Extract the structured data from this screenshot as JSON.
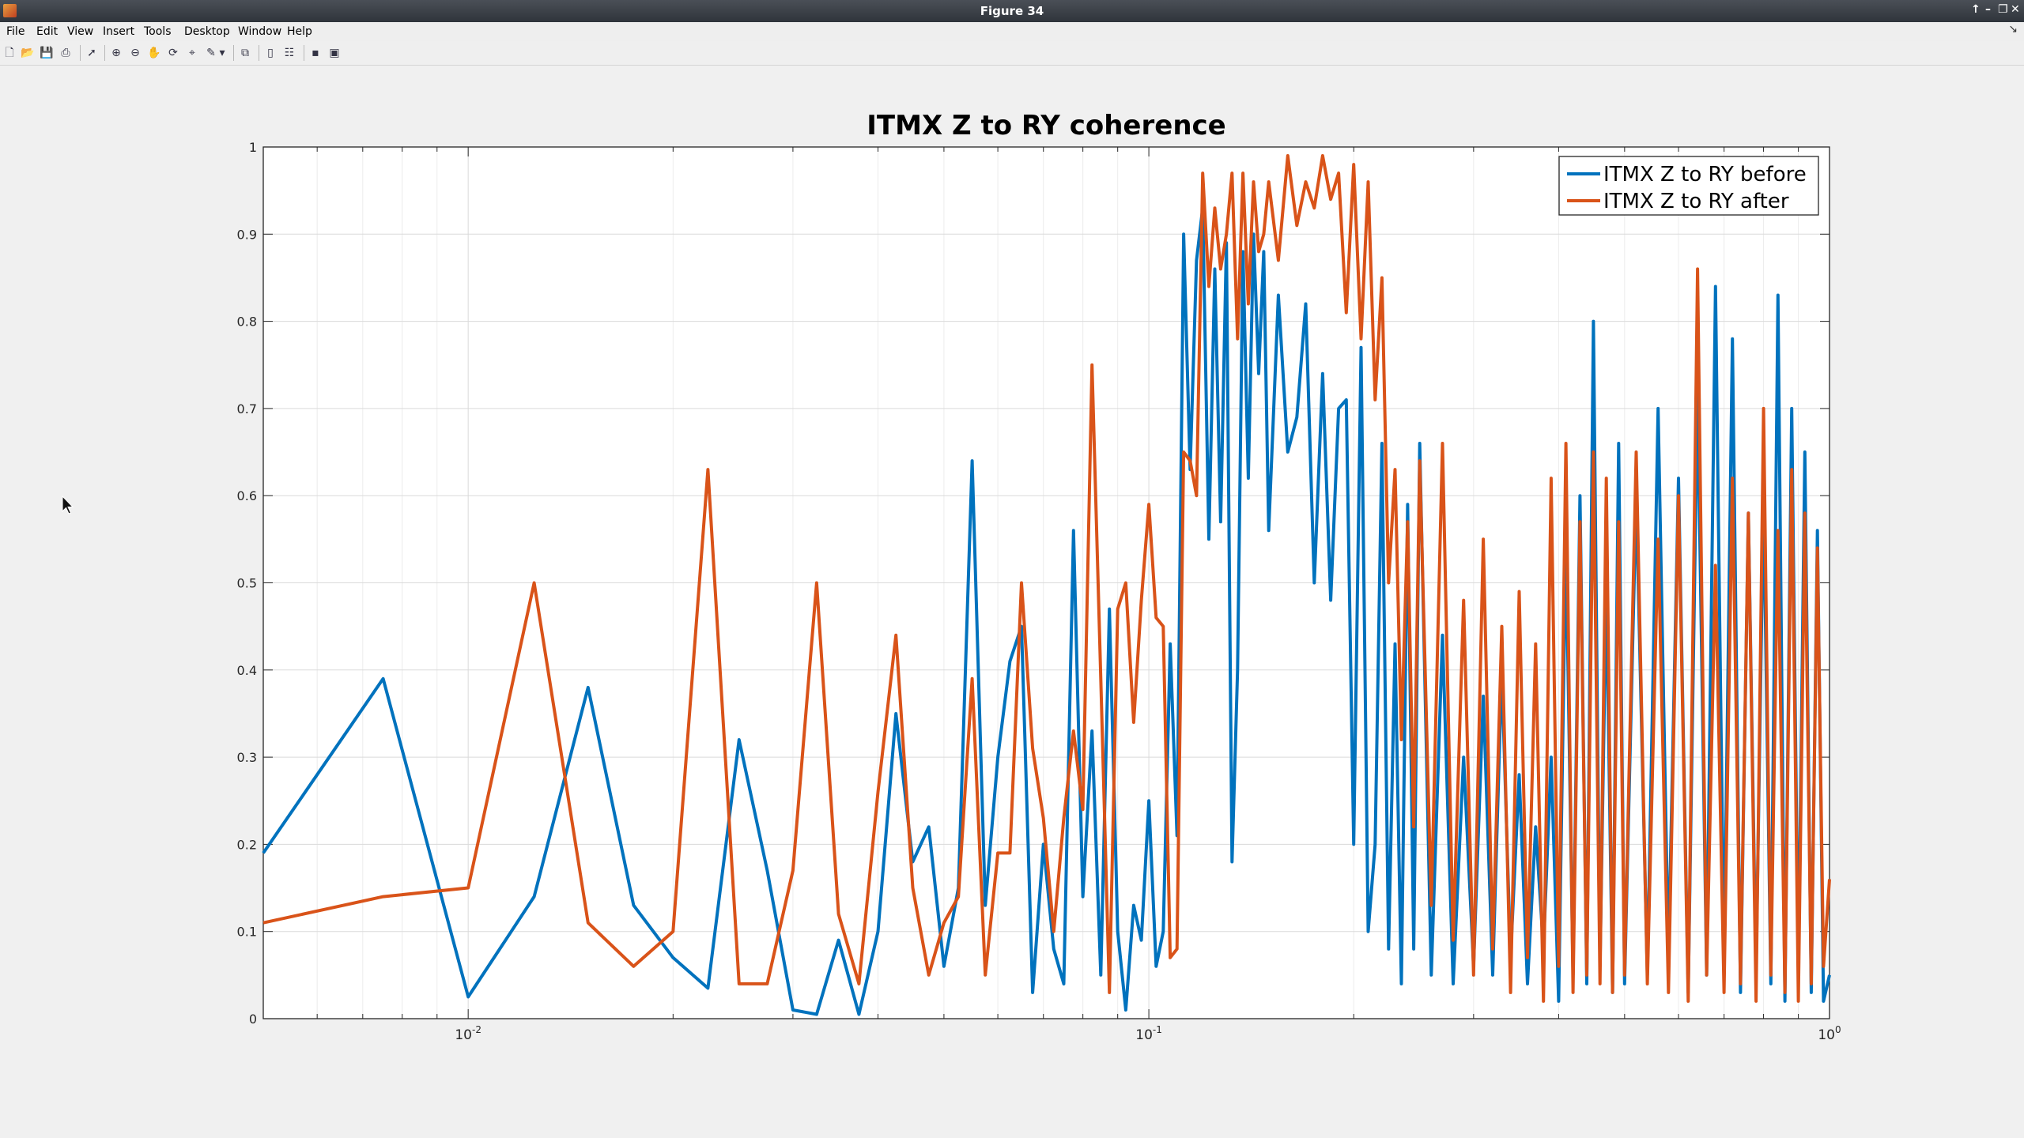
{
  "window": {
    "title": "Figure 34"
  },
  "menu": [
    "File",
    "Edit",
    "View",
    "Insert",
    "Tools",
    "Desktop",
    "Window",
    "Help"
  ],
  "toolbar_icons": [
    "new-figure-icon",
    "open-file-icon",
    "save-icon",
    "print-icon",
    "pointer-icon",
    "zoom-in-icon",
    "zoom-out-icon",
    "pan-icon",
    "rotate-3d-icon",
    "data-cursor-icon",
    "brush-icon",
    "brush-menu-icon",
    "link-plot-icon",
    "colorbar-icon",
    "legend-icon",
    "hide-plot-tools-icon",
    "show-plot-tools-icon"
  ],
  "colors": {
    "before": "#0072bd",
    "after": "#d95319"
  },
  "chart_data": {
    "type": "line",
    "title": "ITMX Z to RY coherence",
    "xlabel": "",
    "ylabel": "",
    "xscale": "log",
    "xlim": [
      0.005,
      1.0
    ],
    "ylim": [
      0,
      1
    ],
    "x_tick_labels": [
      "10^-2",
      "10^-1",
      "10^0"
    ],
    "y_tick_labels": [
      "0",
      "0.1",
      "0.2",
      "0.3",
      "0.4",
      "0.5",
      "0.6",
      "0.7",
      "0.8",
      "0.9",
      "1"
    ],
    "grid": true,
    "legend_position": "top-right",
    "series": [
      {
        "name": "ITMX Z to RY before",
        "x": [
          0.005,
          0.0075,
          0.01,
          0.0125,
          0.015,
          0.0175,
          0.02,
          0.0225,
          0.025,
          0.0275,
          0.03,
          0.0325,
          0.035,
          0.0375,
          0.04,
          0.0425,
          0.045,
          0.0475,
          0.05,
          0.0525,
          0.055,
          0.0575,
          0.06,
          0.0625,
          0.065,
          0.0675,
          0.07,
          0.0725,
          0.075,
          0.0775,
          0.08,
          0.0825,
          0.085,
          0.0875,
          0.09,
          0.0925,
          0.095,
          0.0975,
          0.1,
          0.1025,
          0.105,
          0.1075,
          0.11,
          0.1125,
          0.115,
          0.1175,
          0.12,
          0.1225,
          0.125,
          0.1275,
          0.13,
          0.1325,
          0.135,
          0.1375,
          0.14,
          0.1425,
          0.145,
          0.1475,
          0.15,
          0.155,
          0.16,
          0.165,
          0.17,
          0.175,
          0.18,
          0.185,
          0.19,
          0.195,
          0.2,
          0.205,
          0.21,
          0.215,
          0.22,
          0.225,
          0.23,
          0.235,
          0.24,
          0.245,
          0.25,
          0.26,
          0.27,
          0.28,
          0.29,
          0.3,
          0.31,
          0.32,
          0.33,
          0.34,
          0.35,
          0.36,
          0.37,
          0.38,
          0.39,
          0.4,
          0.41,
          0.42,
          0.43,
          0.44,
          0.45,
          0.46,
          0.47,
          0.48,
          0.49,
          0.5,
          0.52,
          0.54,
          0.56,
          0.58,
          0.6,
          0.62,
          0.64,
          0.66,
          0.68,
          0.7,
          0.72,
          0.74,
          0.76,
          0.78,
          0.8,
          0.82,
          0.84,
          0.86,
          0.88,
          0.9,
          0.92,
          0.94,
          0.96,
          0.98,
          1.0
        ],
        "y": [
          0.19,
          0.39,
          0.025,
          0.14,
          0.38,
          0.13,
          0.07,
          0.035,
          0.32,
          0.17,
          0.01,
          0.005,
          0.09,
          0.005,
          0.1,
          0.35,
          0.18,
          0.22,
          0.06,
          0.15,
          0.64,
          0.13,
          0.3,
          0.41,
          0.45,
          0.03,
          0.2,
          0.08,
          0.04,
          0.56,
          0.14,
          0.33,
          0.05,
          0.47,
          0.1,
          0.01,
          0.13,
          0.09,
          0.25,
          0.06,
          0.1,
          0.43,
          0.21,
          0.9,
          0.63,
          0.87,
          0.93,
          0.55,
          0.86,
          0.57,
          0.89,
          0.18,
          0.4,
          0.88,
          0.62,
          0.9,
          0.74,
          0.88,
          0.56,
          0.83,
          0.65,
          0.69,
          0.82,
          0.5,
          0.74,
          0.48,
          0.7,
          0.71,
          0.2,
          0.77,
          0.1,
          0.2,
          0.66,
          0.08,
          0.43,
          0.04,
          0.59,
          0.08,
          0.66,
          0.05,
          0.44,
          0.04,
          0.3,
          0.06,
          0.37,
          0.05,
          0.4,
          0.07,
          0.28,
          0.04,
          0.22,
          0.08,
          0.3,
          0.02,
          0.55,
          0.05,
          0.6,
          0.04,
          0.8,
          0.06,
          0.5,
          0.03,
          0.66,
          0.04,
          0.6,
          0.05,
          0.7,
          0.07,
          0.62,
          0.03,
          0.72,
          0.05,
          0.84,
          0.06,
          0.78,
          0.03,
          0.58,
          0.05,
          0.6,
          0.04,
          0.83,
          0.02,
          0.7,
          0.05,
          0.65,
          0.03,
          0.56,
          0.02,
          0.05
        ]
      },
      {
        "name": "ITMX Z to RY after",
        "x": [
          0.005,
          0.0075,
          0.01,
          0.0125,
          0.015,
          0.0175,
          0.02,
          0.0225,
          0.025,
          0.0275,
          0.03,
          0.0325,
          0.035,
          0.0375,
          0.04,
          0.0425,
          0.045,
          0.0475,
          0.05,
          0.0525,
          0.055,
          0.0575,
          0.06,
          0.0625,
          0.065,
          0.0675,
          0.07,
          0.0725,
          0.075,
          0.0775,
          0.08,
          0.0825,
          0.085,
          0.0875,
          0.09,
          0.0925,
          0.095,
          0.0975,
          0.1,
          0.1025,
          0.105,
          0.1075,
          0.11,
          0.1125,
          0.115,
          0.1175,
          0.12,
          0.1225,
          0.125,
          0.1275,
          0.13,
          0.1325,
          0.135,
          0.1375,
          0.14,
          0.1425,
          0.145,
          0.1475,
          0.15,
          0.155,
          0.16,
          0.165,
          0.17,
          0.175,
          0.18,
          0.185,
          0.19,
          0.195,
          0.2,
          0.205,
          0.21,
          0.215,
          0.22,
          0.225,
          0.23,
          0.235,
          0.24,
          0.245,
          0.25,
          0.26,
          0.27,
          0.28,
          0.29,
          0.3,
          0.31,
          0.32,
          0.33,
          0.34,
          0.35,
          0.36,
          0.37,
          0.38,
          0.39,
          0.4,
          0.41,
          0.42,
          0.43,
          0.44,
          0.45,
          0.46,
          0.47,
          0.48,
          0.49,
          0.5,
          0.52,
          0.54,
          0.56,
          0.58,
          0.6,
          0.62,
          0.64,
          0.66,
          0.68,
          0.7,
          0.72,
          0.74,
          0.76,
          0.78,
          0.8,
          0.82,
          0.84,
          0.86,
          0.88,
          0.9,
          0.92,
          0.94,
          0.96,
          0.98,
          1.0
        ],
        "y": [
          0.11,
          0.14,
          0.15,
          0.5,
          0.11,
          0.06,
          0.1,
          0.63,
          0.04,
          0.04,
          0.17,
          0.5,
          0.12,
          0.04,
          0.26,
          0.44,
          0.15,
          0.05,
          0.11,
          0.14,
          0.39,
          0.05,
          0.19,
          0.19,
          0.5,
          0.31,
          0.23,
          0.1,
          0.23,
          0.33,
          0.24,
          0.75,
          0.39,
          0.03,
          0.47,
          0.5,
          0.34,
          0.48,
          0.59,
          0.46,
          0.45,
          0.07,
          0.08,
          0.65,
          0.64,
          0.6,
          0.97,
          0.84,
          0.93,
          0.86,
          0.9,
          0.97,
          0.78,
          0.97,
          0.82,
          0.96,
          0.88,
          0.9,
          0.96,
          0.87,
          0.99,
          0.91,
          0.96,
          0.93,
          0.99,
          0.94,
          0.97,
          0.81,
          0.98,
          0.78,
          0.96,
          0.71,
          0.85,
          0.5,
          0.63,
          0.32,
          0.57,
          0.22,
          0.64,
          0.13,
          0.66,
          0.09,
          0.48,
          0.05,
          0.55,
          0.08,
          0.45,
          0.03,
          0.49,
          0.07,
          0.43,
          0.02,
          0.62,
          0.06,
          0.66,
          0.03,
          0.57,
          0.05,
          0.65,
          0.04,
          0.62,
          0.03,
          0.57,
          0.05,
          0.65,
          0.04,
          0.55,
          0.03,
          0.6,
          0.02,
          0.86,
          0.05,
          0.52,
          0.03,
          0.62,
          0.04,
          0.58,
          0.02,
          0.7,
          0.05,
          0.56,
          0.03,
          0.63,
          0.02,
          0.58,
          0.04,
          0.54,
          0.06,
          0.16
        ]
      }
    ]
  }
}
